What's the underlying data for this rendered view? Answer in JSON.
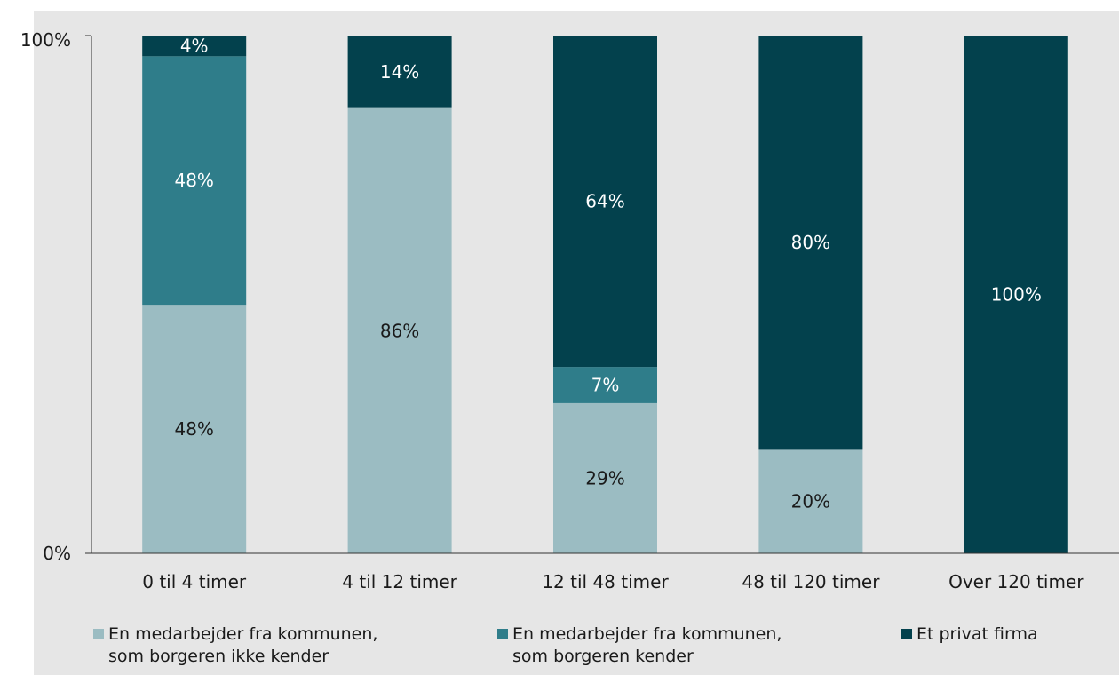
{
  "chart_data": {
    "type": "bar",
    "stacked": true,
    "categories": [
      "0 til 4 timer",
      "4 til 12 timer",
      "12 til 48 timer",
      "48 til 120 timer",
      "Over 120 timer"
    ],
    "series": [
      {
        "name": "En medarbejder fra kommunen,\nsom borgeren ikke kender",
        "color": "#9bbcc2",
        "label_color": "#1a1a1a",
        "values": [
          48,
          86,
          29,
          20,
          0
        ]
      },
      {
        "name": "En medarbejder fra kommunen,\nsom borgeren kender",
        "color": "#2f7d8a",
        "label_color": "#ffffff",
        "values": [
          48,
          0,
          7,
          0,
          0
        ]
      },
      {
        "name": "Et privat firma",
        "color": "#03414d",
        "label_color": "#ffffff",
        "values": [
          4,
          14,
          64,
          80,
          100
        ]
      }
    ],
    "y_ticks": [
      "0%",
      "100%"
    ],
    "ylim": [
      0,
      100
    ],
    "grid": false,
    "legend_position": "bottom"
  }
}
